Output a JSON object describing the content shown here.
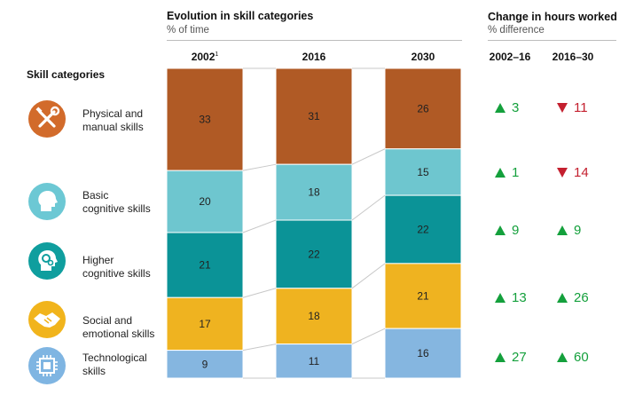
{
  "evolution": {
    "title": "Evolution in skill categories",
    "subtitle": "% of time"
  },
  "change": {
    "title": "Change in hours worked",
    "subtitle": "% difference",
    "col_2002_16": "2002–16",
    "col_2016_30": "2016–30"
  },
  "skills_header": "Skill categories",
  "categories": [
    {
      "line1": "Physical and",
      "line2": "manual skills",
      "icon": "tools-icon",
      "color": "#d26b2b"
    },
    {
      "line1": "Basic",
      "line2": "cognitive skills",
      "icon": "head-icon",
      "color": "#6cc8d4"
    },
    {
      "line1": "Higher",
      "line2": "cognitive skills",
      "icon": "head-gears-icon",
      "color": "#0f9e9e"
    },
    {
      "line1": "Social and",
      "line2": "emotional skills",
      "icon": "handshake-icon",
      "color": "#f1b41c"
    },
    {
      "line1": "Technological",
      "line2": "skills",
      "icon": "chip-icon",
      "color": "#7fb5e2"
    }
  ],
  "chart_data": {
    "type": "bar",
    "stacked": true,
    "categories": [
      "2002",
      "2016",
      "2030"
    ],
    "category_footnotes": [
      "1",
      "",
      ""
    ],
    "series": [
      {
        "name": "Physical and manual skills",
        "values": [
          33,
          31,
          26
        ],
        "color": "#b05a25"
      },
      {
        "name": "Basic cognitive skills",
        "values": [
          20,
          18,
          15
        ],
        "color": "#6ec6cf"
      },
      {
        "name": "Higher cognitive skills",
        "values": [
          21,
          22,
          22
        ],
        "color": "#0b9397"
      },
      {
        "name": "Social and emotional skills",
        "values": [
          17,
          18,
          21
        ],
        "color": "#efb320"
      },
      {
        "name": "Technological skills",
        "values": [
          9,
          11,
          16
        ],
        "color": "#85b6e0"
      }
    ],
    "ylim": [
      0,
      100
    ]
  },
  "changes": [
    {
      "a": {
        "dir": "up",
        "val": "3"
      },
      "b": {
        "dir": "down",
        "val": "11"
      }
    },
    {
      "a": {
        "dir": "up",
        "val": "1"
      },
      "b": {
        "dir": "down",
        "val": "14"
      }
    },
    {
      "a": {
        "dir": "up",
        "val": "9"
      },
      "b": {
        "dir": "up",
        "val": "9"
      }
    },
    {
      "a": {
        "dir": "up",
        "val": "13"
      },
      "b": {
        "dir": "up",
        "val": "26"
      }
    },
    {
      "a": {
        "dir": "up",
        "val": "27"
      },
      "b": {
        "dir": "up",
        "val": "60"
      }
    }
  ],
  "colors": {
    "up": "#14a03c",
    "down": "#c4202f"
  }
}
